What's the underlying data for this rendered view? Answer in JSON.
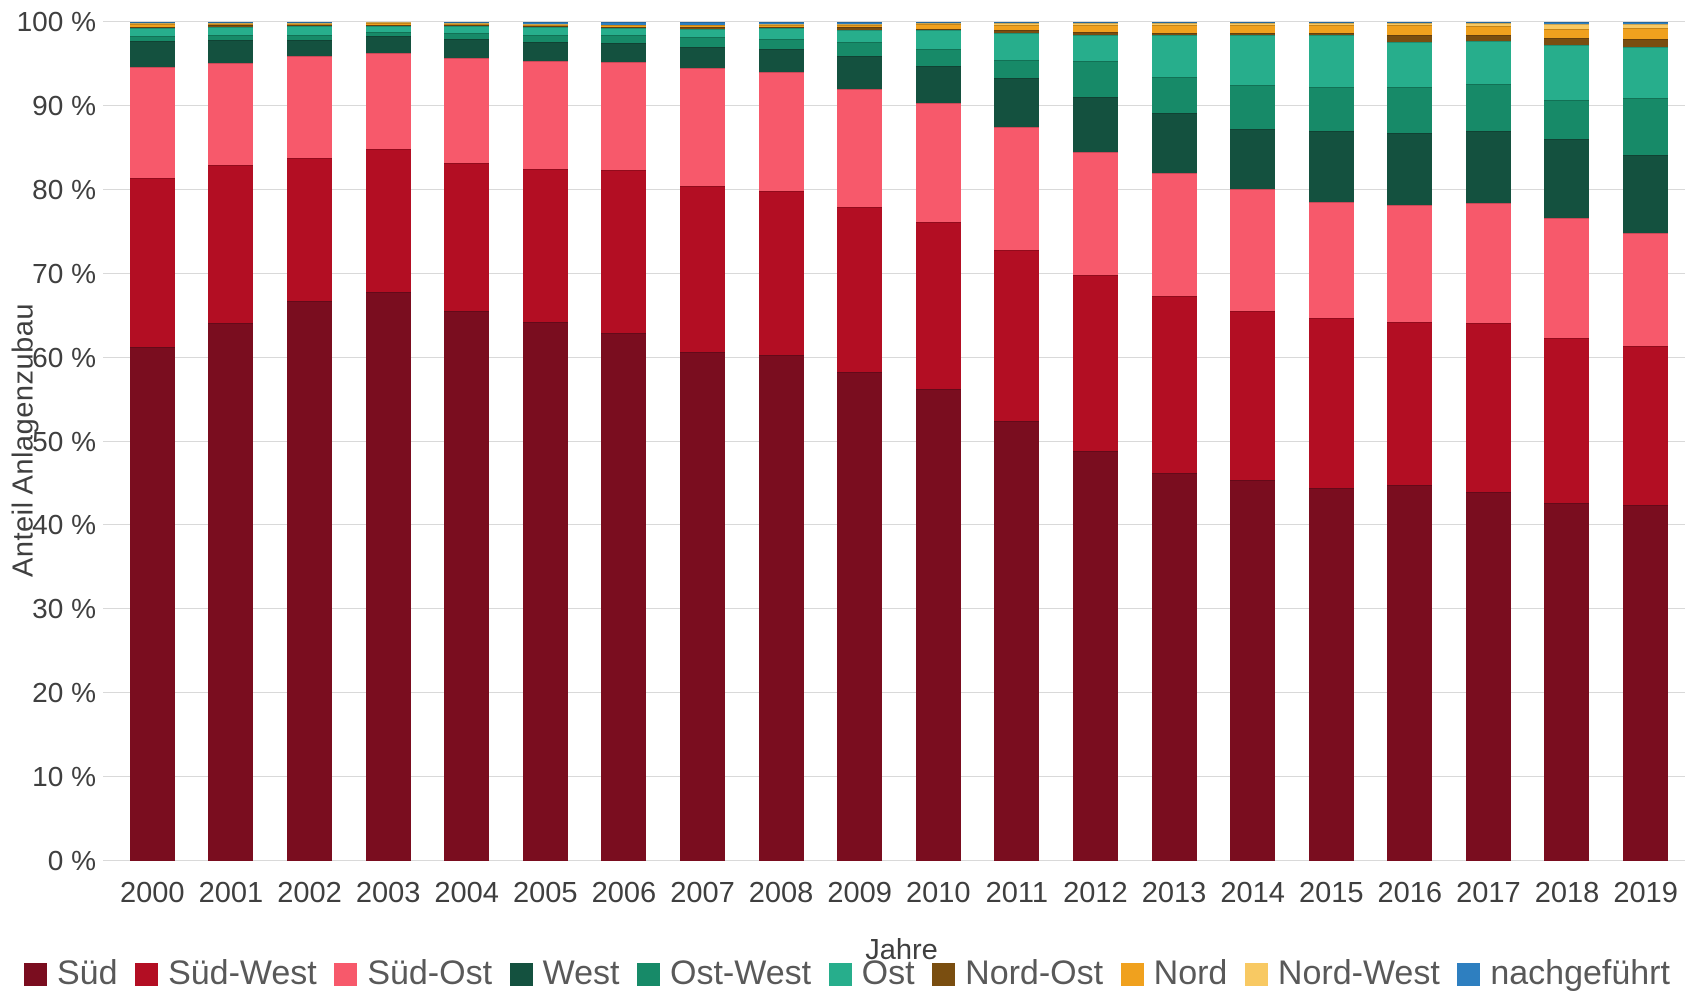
{
  "chart_data": {
    "type": "bar",
    "stacked": true,
    "percent_stacked": true,
    "title": "",
    "xlabel": "Jahre",
    "ylabel": "Anteil Anlagenzubau",
    "ylim": [
      0,
      100
    ],
    "grid": true,
    "legend_position": "bottom",
    "y_ticks": [
      0,
      10,
      20,
      30,
      40,
      50,
      60,
      70,
      80,
      90,
      100
    ],
    "y_tick_labels": [
      "0 %",
      "10 %",
      "20 %",
      "30 %",
      "40 %",
      "50 %",
      "60 %",
      "70 %",
      "80 %",
      "90 %",
      "100 %"
    ],
    "categories": [
      "2000",
      "2001",
      "2002",
      "2003",
      "2004",
      "2005",
      "2006",
      "2007",
      "2008",
      "2009",
      "2010",
      "2011",
      "2012",
      "2013",
      "2014",
      "2015",
      "2016",
      "2017",
      "2018",
      "2019"
    ],
    "series": [
      {
        "name": "Süd",
        "color": "#7A0D1F",
        "values": [
          61.3,
          64.1,
          66.8,
          67.8,
          65.5,
          64.2,
          62.9,
          60.7,
          60.3,
          58.3,
          56.3,
          52.4,
          48.9,
          46.2,
          45.4,
          44.5,
          44.8,
          44.0,
          42.7,
          42.4
        ]
      },
      {
        "name": "Süd-West",
        "color": "#B30E23",
        "values": [
          20.1,
          18.9,
          17.0,
          17.1,
          17.7,
          18.3,
          19.5,
          19.7,
          19.6,
          19.7,
          19.9,
          20.4,
          20.9,
          21.2,
          20.1,
          20.2,
          19.4,
          20.1,
          19.6,
          19.0
        ]
      },
      {
        "name": "Süd-Ost",
        "color": "#F7596B",
        "values": [
          13.3,
          12.1,
          12.2,
          11.4,
          12.5,
          12.8,
          12.8,
          14.1,
          14.1,
          14.0,
          14.1,
          14.7,
          14.7,
          14.6,
          14.6,
          13.9,
          14.0,
          14.3,
          14.3,
          13.5
        ]
      },
      {
        "name": "West",
        "color": "#14513F",
        "values": [
          3.0,
          2.7,
          1.9,
          2.0,
          2.3,
          2.3,
          2.3,
          2.5,
          2.8,
          4.0,
          4.5,
          5.8,
          6.6,
          7.1,
          7.2,
          8.4,
          8.6,
          8.6,
          9.4,
          9.3
        ]
      },
      {
        "name": "Ost-West",
        "color": "#178A68",
        "values": [
          0.6,
          0.7,
          0.6,
          0.5,
          0.7,
          0.9,
          0.9,
          1.2,
          1.2,
          1.6,
          2.0,
          2.2,
          4.2,
          4.4,
          5.2,
          5.3,
          5.5,
          5.6,
          4.7,
          6.8
        ]
      },
      {
        "name": "Ost",
        "color": "#27AE8C",
        "values": [
          1.0,
          0.9,
          1.0,
          0.7,
          0.8,
          0.9,
          0.9,
          1.0,
          1.3,
          1.5,
          2.2,
          3.2,
          3.2,
          5.0,
          6.0,
          6.1,
          5.3,
          5.2,
          6.6,
          6.0
        ]
      },
      {
        "name": "Nord-Ost",
        "color": "#7A4E10",
        "values": [
          0.1,
          0.2,
          0.1,
          0.2,
          0.1,
          0.1,
          0.1,
          0.2,
          0.1,
          0.3,
          0.2,
          0.3,
          0.3,
          0.2,
          0.2,
          0.3,
          0.9,
          0.6,
          0.8,
          1.0
        ]
      },
      {
        "name": "Nord",
        "color": "#F0A11E",
        "values": [
          0.4,
          0.2,
          0.2,
          0.2,
          0.2,
          0.2,
          0.2,
          0.2,
          0.2,
          0.2,
          0.6,
          0.7,
          0.9,
          1.0,
          0.9,
          0.9,
          1.1,
          1.1,
          1.1,
          1.3
        ]
      },
      {
        "name": "Nord-West",
        "color": "#F8C963",
        "values": [
          0.1,
          0.1,
          0.1,
          0.1,
          0.1,
          0.1,
          0.1,
          0.1,
          0.2,
          0.2,
          0.1,
          0.2,
          0.2,
          0.2,
          0.3,
          0.3,
          0.3,
          0.4,
          0.6,
          0.5
        ]
      },
      {
        "name": "nachgeführt",
        "color": "#2E7FC0",
        "values": [
          0.1,
          0.1,
          0.1,
          0.0,
          0.1,
          0.2,
          0.3,
          0.3,
          0.2,
          0.2,
          0.1,
          0.1,
          0.1,
          0.1,
          0.1,
          0.1,
          0.1,
          0.1,
          0.2,
          0.2
        ]
      }
    ]
  },
  "colors": {
    "grid": "#D9D9D9",
    "axis_text": "#3F3F3F",
    "legend_text": "#595959",
    "background": "#FFFFFF"
  }
}
